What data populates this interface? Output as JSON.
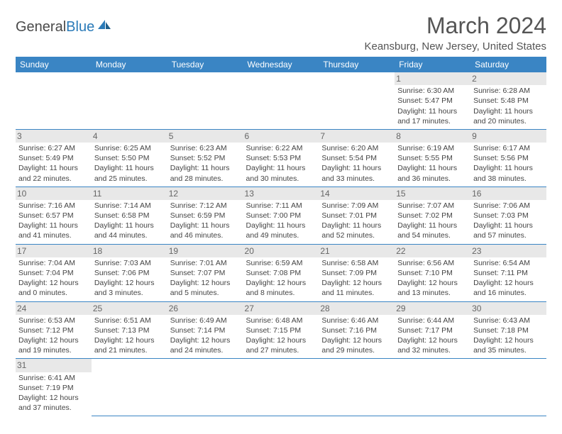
{
  "logo": {
    "text1": "General",
    "text2": "Blue"
  },
  "title": "March 2024",
  "location": "Keansburg, New Jersey, United States",
  "colors": {
    "header_bg": "#3a85c4",
    "header_text": "#ffffff",
    "border": "#3a85c4",
    "text": "#444444",
    "title_text": "#555555"
  },
  "weekdays": [
    "Sunday",
    "Monday",
    "Tuesday",
    "Wednesday",
    "Thursday",
    "Friday",
    "Saturday"
  ],
  "weeks": [
    [
      null,
      null,
      null,
      null,
      null,
      {
        "n": "1",
        "sr": "Sunrise: 6:30 AM",
        "ss": "Sunset: 5:47 PM",
        "d1": "Daylight: 11 hours",
        "d2": "and 17 minutes."
      },
      {
        "n": "2",
        "sr": "Sunrise: 6:28 AM",
        "ss": "Sunset: 5:48 PM",
        "d1": "Daylight: 11 hours",
        "d2": "and 20 minutes."
      }
    ],
    [
      {
        "n": "3",
        "sr": "Sunrise: 6:27 AM",
        "ss": "Sunset: 5:49 PM",
        "d1": "Daylight: 11 hours",
        "d2": "and 22 minutes."
      },
      {
        "n": "4",
        "sr": "Sunrise: 6:25 AM",
        "ss": "Sunset: 5:50 PM",
        "d1": "Daylight: 11 hours",
        "d2": "and 25 minutes."
      },
      {
        "n": "5",
        "sr": "Sunrise: 6:23 AM",
        "ss": "Sunset: 5:52 PM",
        "d1": "Daylight: 11 hours",
        "d2": "and 28 minutes."
      },
      {
        "n": "6",
        "sr": "Sunrise: 6:22 AM",
        "ss": "Sunset: 5:53 PM",
        "d1": "Daylight: 11 hours",
        "d2": "and 30 minutes."
      },
      {
        "n": "7",
        "sr": "Sunrise: 6:20 AM",
        "ss": "Sunset: 5:54 PM",
        "d1": "Daylight: 11 hours",
        "d2": "and 33 minutes."
      },
      {
        "n": "8",
        "sr": "Sunrise: 6:19 AM",
        "ss": "Sunset: 5:55 PM",
        "d1": "Daylight: 11 hours",
        "d2": "and 36 minutes."
      },
      {
        "n": "9",
        "sr": "Sunrise: 6:17 AM",
        "ss": "Sunset: 5:56 PM",
        "d1": "Daylight: 11 hours",
        "d2": "and 38 minutes."
      }
    ],
    [
      {
        "n": "10",
        "sr": "Sunrise: 7:16 AM",
        "ss": "Sunset: 6:57 PM",
        "d1": "Daylight: 11 hours",
        "d2": "and 41 minutes."
      },
      {
        "n": "11",
        "sr": "Sunrise: 7:14 AM",
        "ss": "Sunset: 6:58 PM",
        "d1": "Daylight: 11 hours",
        "d2": "and 44 minutes."
      },
      {
        "n": "12",
        "sr": "Sunrise: 7:12 AM",
        "ss": "Sunset: 6:59 PM",
        "d1": "Daylight: 11 hours",
        "d2": "and 46 minutes."
      },
      {
        "n": "13",
        "sr": "Sunrise: 7:11 AM",
        "ss": "Sunset: 7:00 PM",
        "d1": "Daylight: 11 hours",
        "d2": "and 49 minutes."
      },
      {
        "n": "14",
        "sr": "Sunrise: 7:09 AM",
        "ss": "Sunset: 7:01 PM",
        "d1": "Daylight: 11 hours",
        "d2": "and 52 minutes."
      },
      {
        "n": "15",
        "sr": "Sunrise: 7:07 AM",
        "ss": "Sunset: 7:02 PM",
        "d1": "Daylight: 11 hours",
        "d2": "and 54 minutes."
      },
      {
        "n": "16",
        "sr": "Sunrise: 7:06 AM",
        "ss": "Sunset: 7:03 PM",
        "d1": "Daylight: 11 hours",
        "d2": "and 57 minutes."
      }
    ],
    [
      {
        "n": "17",
        "sr": "Sunrise: 7:04 AM",
        "ss": "Sunset: 7:04 PM",
        "d1": "Daylight: 12 hours",
        "d2": "and 0 minutes."
      },
      {
        "n": "18",
        "sr": "Sunrise: 7:03 AM",
        "ss": "Sunset: 7:06 PM",
        "d1": "Daylight: 12 hours",
        "d2": "and 3 minutes."
      },
      {
        "n": "19",
        "sr": "Sunrise: 7:01 AM",
        "ss": "Sunset: 7:07 PM",
        "d1": "Daylight: 12 hours",
        "d2": "and 5 minutes."
      },
      {
        "n": "20",
        "sr": "Sunrise: 6:59 AM",
        "ss": "Sunset: 7:08 PM",
        "d1": "Daylight: 12 hours",
        "d2": "and 8 minutes."
      },
      {
        "n": "21",
        "sr": "Sunrise: 6:58 AM",
        "ss": "Sunset: 7:09 PM",
        "d1": "Daylight: 12 hours",
        "d2": "and 11 minutes."
      },
      {
        "n": "22",
        "sr": "Sunrise: 6:56 AM",
        "ss": "Sunset: 7:10 PM",
        "d1": "Daylight: 12 hours",
        "d2": "and 13 minutes."
      },
      {
        "n": "23",
        "sr": "Sunrise: 6:54 AM",
        "ss": "Sunset: 7:11 PM",
        "d1": "Daylight: 12 hours",
        "d2": "and 16 minutes."
      }
    ],
    [
      {
        "n": "24",
        "sr": "Sunrise: 6:53 AM",
        "ss": "Sunset: 7:12 PM",
        "d1": "Daylight: 12 hours",
        "d2": "and 19 minutes."
      },
      {
        "n": "25",
        "sr": "Sunrise: 6:51 AM",
        "ss": "Sunset: 7:13 PM",
        "d1": "Daylight: 12 hours",
        "d2": "and 21 minutes."
      },
      {
        "n": "26",
        "sr": "Sunrise: 6:49 AM",
        "ss": "Sunset: 7:14 PM",
        "d1": "Daylight: 12 hours",
        "d2": "and 24 minutes."
      },
      {
        "n": "27",
        "sr": "Sunrise: 6:48 AM",
        "ss": "Sunset: 7:15 PM",
        "d1": "Daylight: 12 hours",
        "d2": "and 27 minutes."
      },
      {
        "n": "28",
        "sr": "Sunrise: 6:46 AM",
        "ss": "Sunset: 7:16 PM",
        "d1": "Daylight: 12 hours",
        "d2": "and 29 minutes."
      },
      {
        "n": "29",
        "sr": "Sunrise: 6:44 AM",
        "ss": "Sunset: 7:17 PM",
        "d1": "Daylight: 12 hours",
        "d2": "and 32 minutes."
      },
      {
        "n": "30",
        "sr": "Sunrise: 6:43 AM",
        "ss": "Sunset: 7:18 PM",
        "d1": "Daylight: 12 hours",
        "d2": "and 35 minutes."
      }
    ],
    [
      {
        "n": "31",
        "sr": "Sunrise: 6:41 AM",
        "ss": "Sunset: 7:19 PM",
        "d1": "Daylight: 12 hours",
        "d2": "and 37 minutes."
      },
      null,
      null,
      null,
      null,
      null,
      null
    ]
  ]
}
